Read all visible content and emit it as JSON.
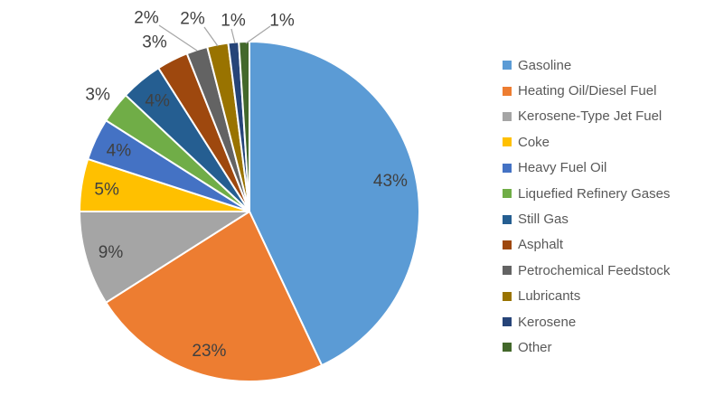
{
  "chart_data": {
    "type": "pie",
    "title": "",
    "unit": "%",
    "direction": "clockwise",
    "start_angle_deg": 0,
    "legend_position": "right",
    "labels": [
      "Gasoline",
      "Heating Oil/Diesel Fuel",
      "Kerosene-Type Jet Fuel",
      "Coke",
      "Heavy Fuel Oil",
      "Liquefied Refinery Gases",
      "Still Gas",
      "Asphalt",
      "Petrochemical Feedstock",
      "Lubricants",
      "Kerosene",
      "Other"
    ],
    "values": [
      43,
      23,
      9,
      5,
      4,
      3,
      4,
      3,
      2,
      2,
      1,
      1
    ],
    "value_labels": [
      "43%",
      "23%",
      "9%",
      "5%",
      "4%",
      "3%",
      "4%",
      "3%",
      "2%",
      "2%",
      "1%",
      "1%"
    ],
    "colors": [
      "#5B9BD5",
      "#ED7D31",
      "#A5A5A5",
      "#FFC000",
      "#4472C4",
      "#70AD47",
      "#255E91",
      "#9E480E",
      "#636363",
      "#997300",
      "#264478",
      "#43682B"
    ],
    "label_color": "#404040",
    "legend_text_color": "#595959",
    "leader_line_color": "#A6A6A6",
    "slice_border_color": "#FFFFFF",
    "background_color": "#FFFFFF"
  }
}
